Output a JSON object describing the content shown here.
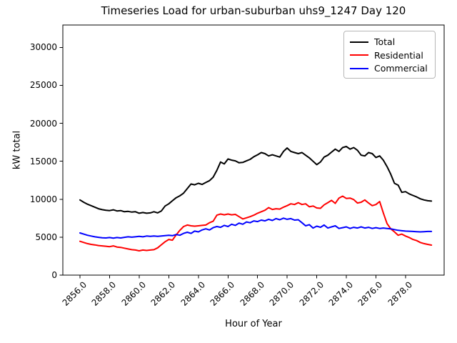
{
  "chart_data": {
    "type": "line",
    "title": "Timeseries Load for urban-suburban uhs9_1247  Day 120",
    "xlabel": "Hour of Year",
    "ylabel": "kW total",
    "grid": false,
    "legend_position": "upper right",
    "x_start": 2856.0,
    "x_step": 0.25,
    "xlim": [
      2854.84,
      2880.61
    ],
    "ylim": [
      0,
      32950
    ],
    "x_ticks": [
      2856,
      2858,
      2860,
      2862,
      2864,
      2866,
      2868,
      2870,
      2872,
      2874,
      2876,
      2878
    ],
    "x_tick_labels": [
      "2856.0",
      "2858.0",
      "2860.0",
      "2862.0",
      "2864.0",
      "2866.0",
      "2868.0",
      "2870.0",
      "2872.0",
      "2874.0",
      "2876.0",
      "2878.0"
    ],
    "y_ticks": [
      0,
      5000,
      10000,
      15000,
      20000,
      25000,
      30000
    ],
    "y_tick_labels": [
      "0",
      "5000",
      "10000",
      "15000",
      "20000",
      "25000",
      "30000"
    ],
    "series": [
      {
        "name": "Total",
        "color": "#000000",
        "values": [
          9900,
          9600,
          9350,
          9150,
          8950,
          8750,
          8620,
          8550,
          8500,
          8600,
          8450,
          8500,
          8350,
          8400,
          8300,
          8350,
          8150,
          8250,
          8150,
          8200,
          8350,
          8200,
          8450,
          9100,
          9400,
          9800,
          10200,
          10450,
          10800,
          11400,
          12000,
          11900,
          12100,
          11950,
          12200,
          12450,
          12900,
          13800,
          14900,
          14650,
          15300,
          15150,
          15050,
          14800,
          14850,
          15050,
          15250,
          15600,
          15850,
          16150,
          16000,
          15700,
          15850,
          15700,
          15550,
          16300,
          16750,
          16300,
          16150,
          16000,
          16150,
          15800,
          15450,
          15000,
          14550,
          14900,
          15550,
          15800,
          16200,
          16600,
          16300,
          16800,
          16950,
          16600,
          16800,
          16450,
          15800,
          15700,
          16150,
          16000,
          15500,
          15700,
          15150,
          14300,
          13300,
          12100,
          11850,
          10900,
          11000,
          10700,
          10500,
          10300,
          10050,
          9900,
          9800,
          9750
        ]
      },
      {
        "name": "Residential",
        "color": "#ff0000",
        "values": [
          4450,
          4300,
          4150,
          4050,
          3980,
          3900,
          3850,
          3800,
          3750,
          3850,
          3700,
          3650,
          3550,
          3450,
          3350,
          3300,
          3200,
          3300,
          3250,
          3300,
          3350,
          3600,
          4000,
          4400,
          4700,
          4600,
          5300,
          5900,
          6400,
          6600,
          6500,
          6450,
          6500,
          6550,
          6600,
          6900,
          7100,
          7900,
          8050,
          7950,
          8050,
          7950,
          8000,
          7700,
          7400,
          7550,
          7700,
          7900,
          8150,
          8350,
          8550,
          8900,
          8650,
          8750,
          8700,
          8950,
          9150,
          9400,
          9300,
          9550,
          9300,
          9400,
          9000,
          9100,
          8850,
          8800,
          9250,
          9550,
          9850,
          9450,
          10150,
          10400,
          10100,
          10150,
          9950,
          9500,
          9600,
          9900,
          9500,
          9150,
          9300,
          9700,
          8200,
          6800,
          6100,
          5700,
          5250,
          5400,
          5150,
          4950,
          4700,
          4550,
          4300,
          4150,
          4050,
          3950
        ]
      },
      {
        "name": "Commercial",
        "color": "#0000ff",
        "values": [
          5550,
          5400,
          5250,
          5150,
          5050,
          4980,
          4920,
          4900,
          4950,
          4880,
          4950,
          4900,
          4980,
          5050,
          5000,
          5050,
          5100,
          5050,
          5150,
          5100,
          5150,
          5100,
          5150,
          5200,
          5250,
          5200,
          5350,
          5250,
          5500,
          5650,
          5500,
          5800,
          5700,
          5950,
          6100,
          5950,
          6250,
          6400,
          6300,
          6550,
          6400,
          6700,
          6550,
          6850,
          6700,
          7000,
          6900,
          7150,
          7050,
          7250,
          7150,
          7350,
          7200,
          7450,
          7300,
          7500,
          7350,
          7450,
          7250,
          7300,
          6900,
          6500,
          6650,
          6200,
          6450,
          6300,
          6600,
          6200,
          6350,
          6500,
          6150,
          6250,
          6350,
          6150,
          6300,
          6200,
          6350,
          6200,
          6300,
          6150,
          6250,
          6150,
          6200,
          6150,
          6100,
          6000,
          5900,
          5850,
          5800,
          5780,
          5750,
          5720,
          5700,
          5720,
          5750,
          5750
        ]
      }
    ]
  }
}
